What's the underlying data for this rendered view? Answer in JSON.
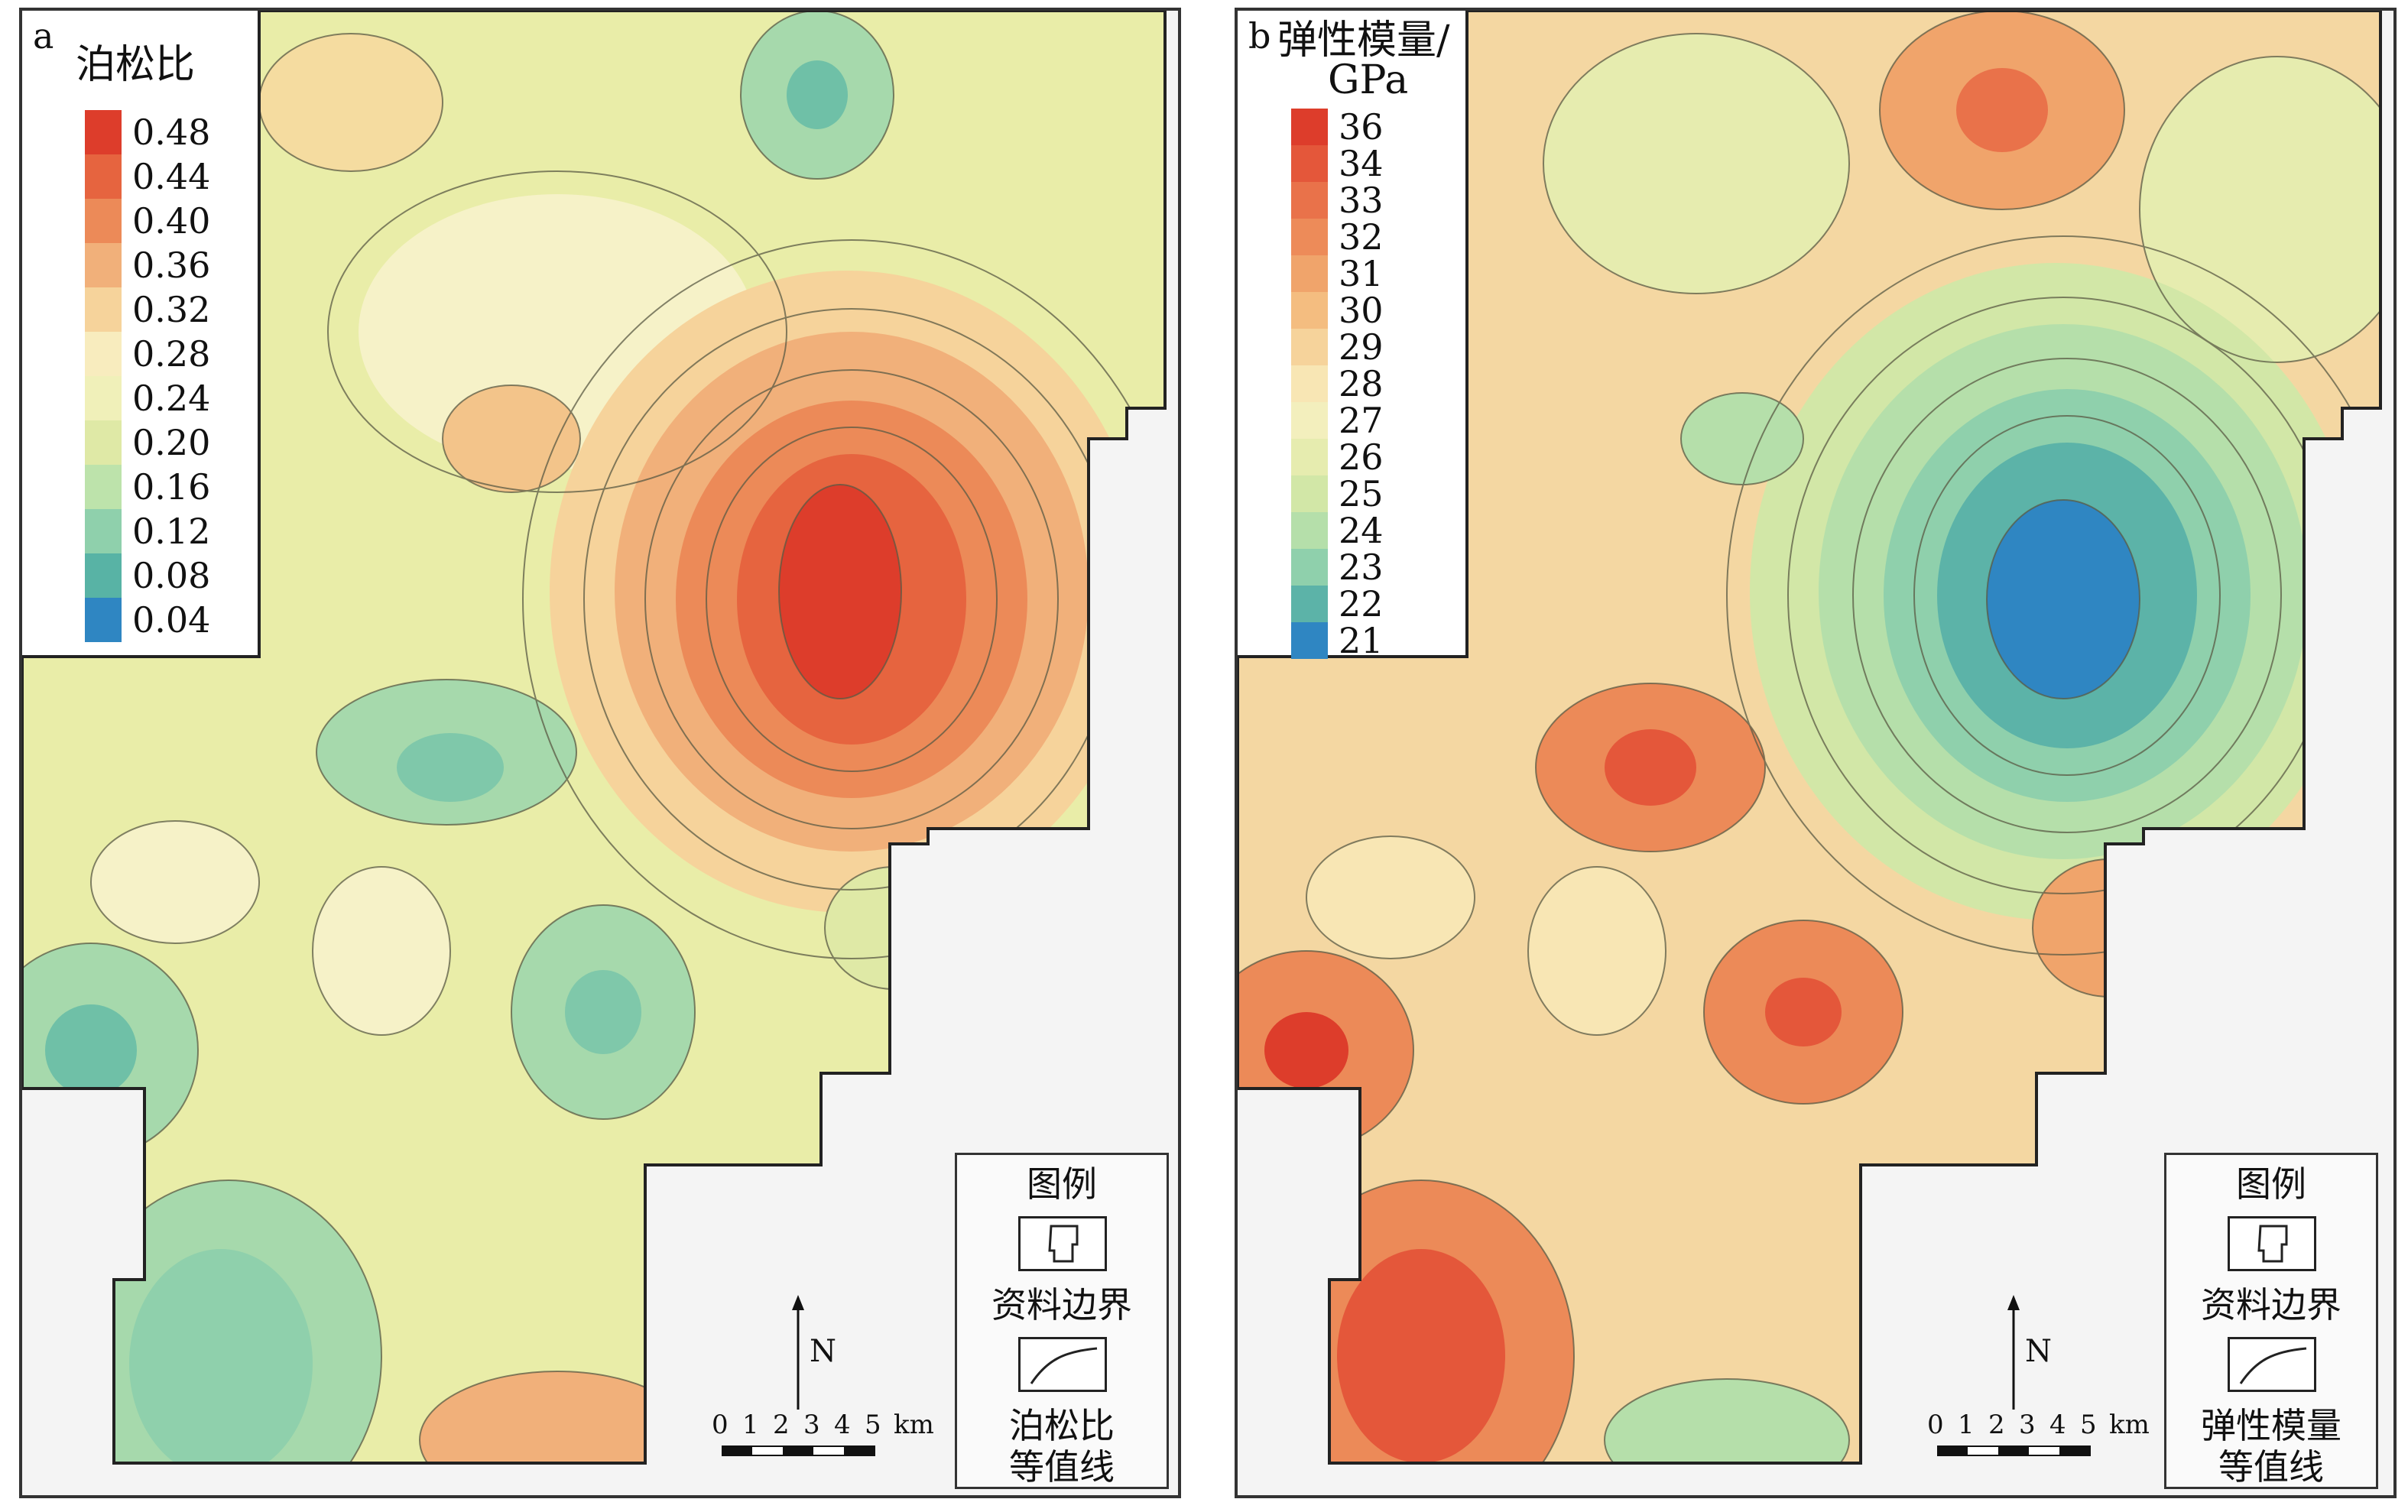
{
  "panels": [
    {
      "label": "a",
      "legend_title": "泊松比",
      "colorbar": {
        "ticks": [
          "0.48",
          "0.44",
          "0.40",
          "0.36",
          "0.32",
          "0.28",
          "0.24",
          "0.20",
          "0.16",
          "0.12",
          "0.08",
          "0.04"
        ],
        "colors": [
          "#dd3d2b",
          "#e6643f",
          "#ec8a58",
          "#f1b07a",
          "#f6d39b",
          "#f8ecbe",
          "#f0f0b9",
          "#dfe9a6",
          "#bde3ab",
          "#8fd0ac",
          "#58b3a5",
          "#2f86c2"
        ]
      },
      "legend_box": {
        "heading": "图例",
        "boundary": "资料边界",
        "contour": "泊松比",
        "contour_line2": "等值线"
      },
      "north": "N",
      "scale": {
        "labels": [
          "0",
          "1",
          "2",
          "3",
          "4",
          "5"
        ],
        "unit": "km"
      }
    },
    {
      "label": "b",
      "legend_title": "弹性模量/",
      "legend_unit": "GPa",
      "colorbar": {
        "ticks": [
          "36",
          "34",
          "33",
          "32",
          "31",
          "30",
          "29",
          "28",
          "27",
          "26",
          "25",
          "24",
          "23",
          "22",
          "21"
        ],
        "colors": [
          "#dd3d2b",
          "#e4573a",
          "#e9724a",
          "#ed8b59",
          "#f0a46b",
          "#f4bd80",
          "#f6d39b",
          "#f8e6b4",
          "#f3efbd",
          "#e6ecaf",
          "#d2e7a7",
          "#b5dfaa",
          "#8fd0ac",
          "#5cb3a8",
          "#2f86c2"
        ]
      },
      "legend_box": {
        "heading": "图例",
        "boundary": "资料边界",
        "contour": "弹性模量",
        "contour_line2": "等值线"
      },
      "north": "N",
      "scale": {
        "labels": [
          "0",
          "1",
          "2",
          "3",
          "4",
          "5"
        ],
        "unit": "km"
      }
    }
  ]
}
